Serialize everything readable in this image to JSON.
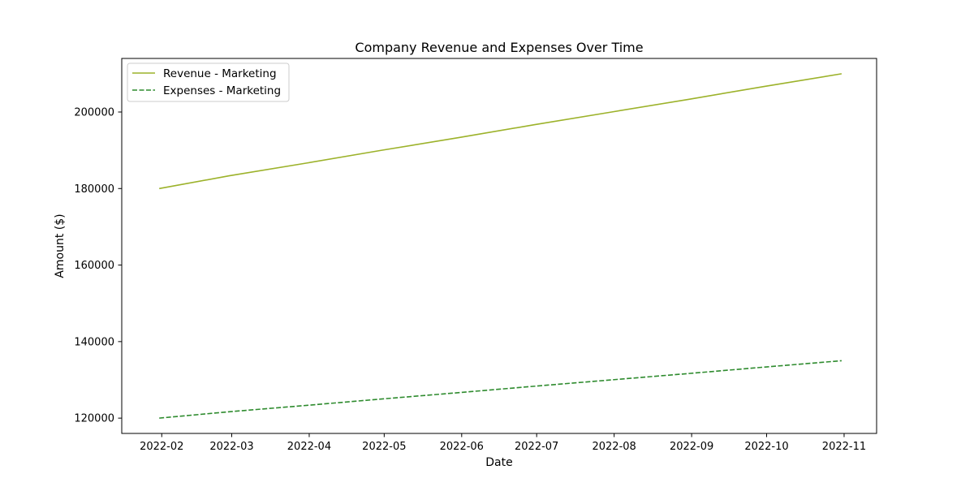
{
  "chart_data": {
    "type": "line",
    "title": "Company Revenue and Expenses Over Time",
    "xlabel": "Date",
    "ylabel": "Amount ($)",
    "x": [
      "2022-01-31",
      "2022-02-28",
      "2022-03-31",
      "2022-04-30",
      "2022-05-31",
      "2022-06-30",
      "2022-07-31",
      "2022-08-31",
      "2022-09-30",
      "2022-10-31"
    ],
    "xlim": [
      "2022-01-16",
      "2022-11-14"
    ],
    "ylim": [
      116000,
      214000
    ],
    "x_ticks": [
      "2022-02",
      "2022-03",
      "2022-04",
      "2022-05",
      "2022-06",
      "2022-07",
      "2022-08",
      "2022-09",
      "2022-10",
      "2022-11"
    ],
    "y_ticks": [
      120000,
      140000,
      160000,
      180000,
      200000
    ],
    "grid": false,
    "legend_position": "top-left",
    "series": [
      {
        "name": "Revenue - Marketing",
        "color": "#9cb22a",
        "dash": "solid",
        "values": [
          180000,
          183333,
          186667,
          190000,
          193333,
          196667,
          200000,
          203333,
          206667,
          210000
        ]
      },
      {
        "name": "Expenses - Marketing",
        "color": "#2e8b2e",
        "dash": "dashed",
        "values": [
          120000,
          121667,
          123333,
          125000,
          126667,
          128333,
          130000,
          131667,
          133333,
          135000
        ]
      }
    ]
  }
}
